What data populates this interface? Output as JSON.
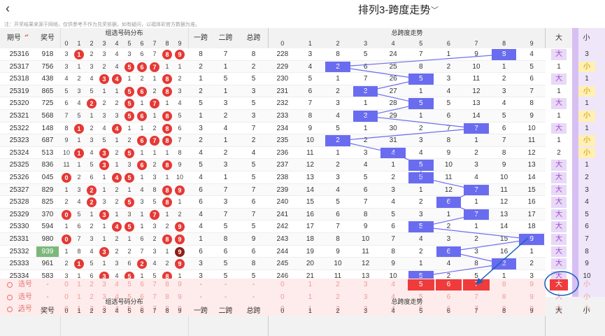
{
  "topbar": {
    "back_icon": "‹",
    "title": "排列3-跨度走势",
    "caret_icon": "﹀"
  },
  "notice": "注：开奖结果来源于网络，仅供参考不作为兑奖依据，如有疑问，以福体彩官方数据为准。",
  "header": {
    "period": "期号",
    "sort_icon": "▴▾",
    "prize": "奖号",
    "group_dist": "组选号码分布",
    "span1": "一跨",
    "span2": "二跨",
    "total_span": "总跨",
    "trend": "总跨度走势",
    "big": "大",
    "small": "小",
    "digits": [
      "0",
      "1",
      "2",
      "3",
      "4",
      "5",
      "6",
      "7",
      "8",
      "9"
    ],
    "trend_digits": [
      "0",
      "1",
      "2",
      "3",
      "4",
      "5",
      "6",
      "7",
      "8",
      "9"
    ]
  },
  "rows": [
    {
      "period": "25316",
      "prize": "918",
      "dist": [
        "3",
        "1",
        "2",
        "3",
        "4",
        "3",
        "6",
        "7",
        "8",
        "9"
      ],
      "s1": "8",
      "s2": "7",
      "ts": "8",
      "trend": [
        "228",
        "3",
        "8",
        "5",
        "24",
        "7",
        "1",
        "9",
        "8",
        "4"
      ],
      "big": "大",
      "small": "3"
    },
    {
      "period": "25317",
      "prize": "756",
      "dist": [
        "3",
        "1",
        "3",
        "2",
        "4",
        "5",
        "6",
        "7",
        "1",
        "1"
      ],
      "s1": "2",
      "s2": "1",
      "ts": "2",
      "trend": [
        "229",
        "4",
        "2",
        "6",
        "25",
        "8",
        "2",
        "10",
        "1",
        "5"
      ],
      "big": "1",
      "small": "小"
    },
    {
      "period": "25318",
      "prize": "438",
      "dist": [
        "4",
        "2",
        "4",
        "3",
        "4",
        "1",
        "2",
        "1",
        "8",
        "2"
      ],
      "s1": "1",
      "s2": "5",
      "ts": "5",
      "trend": [
        "230",
        "5",
        "1",
        "7",
        "26",
        "5",
        "3",
        "11",
        "2",
        "6"
      ],
      "big": "大",
      "small": "1"
    },
    {
      "period": "25319",
      "prize": "865",
      "dist": [
        "5",
        "3",
        "5",
        "1",
        "1",
        "5",
        "6",
        "2",
        "8",
        "3"
      ],
      "s1": "2",
      "s2": "1",
      "ts": "3",
      "trend": [
        "231",
        "6",
        "2",
        "3",
        "27",
        "1",
        "4",
        "12",
        "3",
        "7"
      ],
      "big": "1",
      "small": "小"
    },
    {
      "period": "25320",
      "prize": "725",
      "dist": [
        "6",
        "4",
        "2",
        "2",
        "2",
        "5",
        "1",
        "7",
        "1",
        "4"
      ],
      "s1": "5",
      "s2": "3",
      "ts": "5",
      "trend": [
        "232",
        "7",
        "3",
        "1",
        "28",
        "5",
        "5",
        "13",
        "4",
        "8"
      ],
      "big": "大",
      "small": "1"
    },
    {
      "period": "25321",
      "prize": "568",
      "dist": [
        "7",
        "5",
        "1",
        "3",
        "3",
        "5",
        "6",
        "1",
        "8",
        "5"
      ],
      "s1": "1",
      "s2": "2",
      "ts": "3",
      "trend": [
        "233",
        "8",
        "4",
        "3",
        "29",
        "1",
        "6",
        "14",
        "5",
        "9"
      ],
      "big": "1",
      "small": "小"
    },
    {
      "period": "25322",
      "prize": "148",
      "dist": [
        "8",
        "1",
        "2",
        "4",
        "4",
        "1",
        "1",
        "2",
        "8",
        "6"
      ],
      "s1": "3",
      "s2": "4",
      "ts": "7",
      "trend": [
        "234",
        "9",
        "5",
        "1",
        "30",
        "2",
        "7",
        "7",
        "6",
        "10"
      ],
      "big": "大",
      "small": "1"
    },
    {
      "period": "25323",
      "prize": "687",
      "dist": [
        "9",
        "1",
        "3",
        "5",
        "1",
        "2",
        "6",
        "7",
        "8",
        "7"
      ],
      "s1": "2",
      "s2": "1",
      "ts": "2",
      "trend": [
        "235",
        "10",
        "2",
        "2",
        "31",
        "3",
        "8",
        "1",
        "7",
        "11"
      ],
      "big": "1",
      "small": "小"
    },
    {
      "period": "25324",
      "prize": "513",
      "din": "",
      "dist": [
        "10",
        "1",
        "4",
        "3",
        "2",
        "5",
        "1",
        "1",
        "1",
        "8"
      ],
      "s1": "4",
      "s2": "2",
      "ts": "4",
      "trend": [
        "236",
        "11",
        "1",
        "3",
        "4",
        "4",
        "9",
        "2",
        "8",
        "12"
      ],
      "big": "2",
      "small": "小"
    },
    {
      "period": "25325",
      "prize": "836",
      "dist": [
        "11",
        "1",
        "5",
        "3",
        "1",
        "3",
        "6",
        "2",
        "8",
        "9"
      ],
      "s1": "5",
      "s2": "3",
      "ts": "5",
      "trend": [
        "237",
        "12",
        "2",
        "4",
        "1",
        "5",
        "10",
        "3",
        "9",
        "13"
      ],
      "big": "大",
      "small": "1"
    },
    {
      "period": "25326",
      "prize": "045",
      "dist": [
        "0",
        "2",
        "6",
        "1",
        "4",
        "5",
        "1",
        "3",
        "1",
        "10"
      ],
      "s1": "4",
      "s2": "1",
      "ts": "5",
      "trend": [
        "238",
        "13",
        "3",
        "5",
        "2",
        "5",
        "11",
        "4",
        "10",
        "14"
      ],
      "big": "大",
      "small": "2"
    },
    {
      "period": "25327",
      "prize": "829",
      "dist": [
        "1",
        "3",
        "2",
        "1",
        "2",
        "1",
        "4",
        "8",
        "8",
        "9"
      ],
      "s1": "6",
      "s2": "7",
      "ts": "7",
      "trend": [
        "239",
        "14",
        "4",
        "6",
        "3",
        "1",
        "12",
        "7",
        "11",
        "15"
      ],
      "big": "大",
      "small": "3"
    },
    {
      "period": "25328",
      "prize": "825",
      "dist": [
        "2",
        "4",
        "2",
        "3",
        "2",
        "5",
        "3",
        "5",
        "8",
        "1"
      ],
      "s1": "6",
      "s2": "3",
      "ts": "6",
      "trend": [
        "240",
        "15",
        "5",
        "7",
        "4",
        "2",
        "6",
        "1",
        "12",
        "16"
      ],
      "big": "大",
      "small": "4"
    },
    {
      "period": "25329",
      "prize": "370",
      "dist": [
        "0",
        "5",
        "1",
        "3",
        "1",
        "3",
        "1",
        "7",
        "1",
        "2"
      ],
      "s1": "4",
      "s2": "7",
      "ts": "7",
      "trend": [
        "241",
        "16",
        "6",
        "8",
        "5",
        "3",
        "1",
        "7",
        "13",
        "17"
      ],
      "big": "大",
      "small": "5"
    },
    {
      "period": "25330",
      "prize": "594",
      "dist": [
        "1",
        "6",
        "2",
        "1",
        "4",
        "5",
        "1",
        "3",
        "2",
        "9"
      ],
      "s1": "4",
      "s2": "5",
      "ts": "5",
      "trend": [
        "242",
        "17",
        "7",
        "9",
        "6",
        "5",
        "2",
        "1",
        "14",
        "18"
      ],
      "big": "大",
      "small": "6"
    },
    {
      "period": "25331",
      "prize": "980",
      "dist": [
        "0",
        "7",
        "3",
        "1",
        "2",
        "1",
        "6",
        "2",
        "8",
        "9"
      ],
      "s1": "1",
      "s2": "8",
      "ts": "9",
      "trend": [
        "243",
        "18",
        "8",
        "10",
        "7",
        "4",
        "3",
        "2",
        "15",
        "9"
      ],
      "big": "大",
      "small": "7"
    },
    {
      "period": "25332",
      "prize": "939",
      "dist": [
        "1",
        "8",
        "4",
        "3",
        "2",
        "2",
        "7",
        "3",
        "1",
        "9"
      ],
      "s1": "6",
      "s2": "6",
      "ts": "6",
      "trend": [
        "244",
        "19",
        "9",
        "11",
        "8",
        "2",
        "6",
        "3",
        "16",
        "1"
      ],
      "big": "大",
      "small": "8"
    },
    {
      "period": "25333",
      "prize": "961",
      "dist": [
        "2",
        "1",
        "5",
        "1",
        "3",
        "6",
        "2",
        "4",
        "2",
        "9"
      ],
      "s1": "3",
      "s2": "5",
      "ts": "8",
      "trend": [
        "245",
        "20",
        "10",
        "12",
        "9",
        "1",
        "4",
        "8",
        "2",
        "2"
      ],
      "big": "大",
      "small": "9"
    },
    {
      "period": "25334",
      "prize": "583",
      "dist": [
        "3",
        "1",
        "6",
        "3",
        "4",
        "5",
        "1",
        "5",
        "8",
        "1"
      ],
      "s1": "3",
      "s2": "5",
      "ts": "5",
      "trend": [
        "246",
        "21",
        "11",
        "13",
        "10",
        "5",
        "2",
        "5",
        "1",
        "3"
      ],
      "big": "大",
      "small": "10"
    }
  ],
  "selrows": [
    {
      "label": "选号",
      "prize": "-",
      "s1": "-",
      "s2": "-",
      "ts": "-"
    },
    {
      "label": "选号",
      "prize": "-",
      "s1": "-",
      "s2": "-",
      "ts": "-"
    },
    {
      "label": "选号",
      "prize": "-",
      "s1": "-",
      "s2": "-",
      "ts": "-"
    }
  ],
  "footer": {
    "dash": "-",
    "prize": "奖号",
    "group_dist": "组选号码分布",
    "span1": "一跨",
    "span2": "二跨",
    "total_span": "总跨",
    "trend": "总跨度走势",
    "big": "大",
    "small": "小"
  },
  "colors": {
    "ball_red": "#e53935",
    "trend_blue": "#6a6cf0",
    "pale_purple": "#e8d9f7",
    "pale_yellow": "#fff0b3",
    "select_red": "#ef3b3b",
    "select_row": "#fdeceb",
    "annot_blue": "#1a5fc0"
  }
}
